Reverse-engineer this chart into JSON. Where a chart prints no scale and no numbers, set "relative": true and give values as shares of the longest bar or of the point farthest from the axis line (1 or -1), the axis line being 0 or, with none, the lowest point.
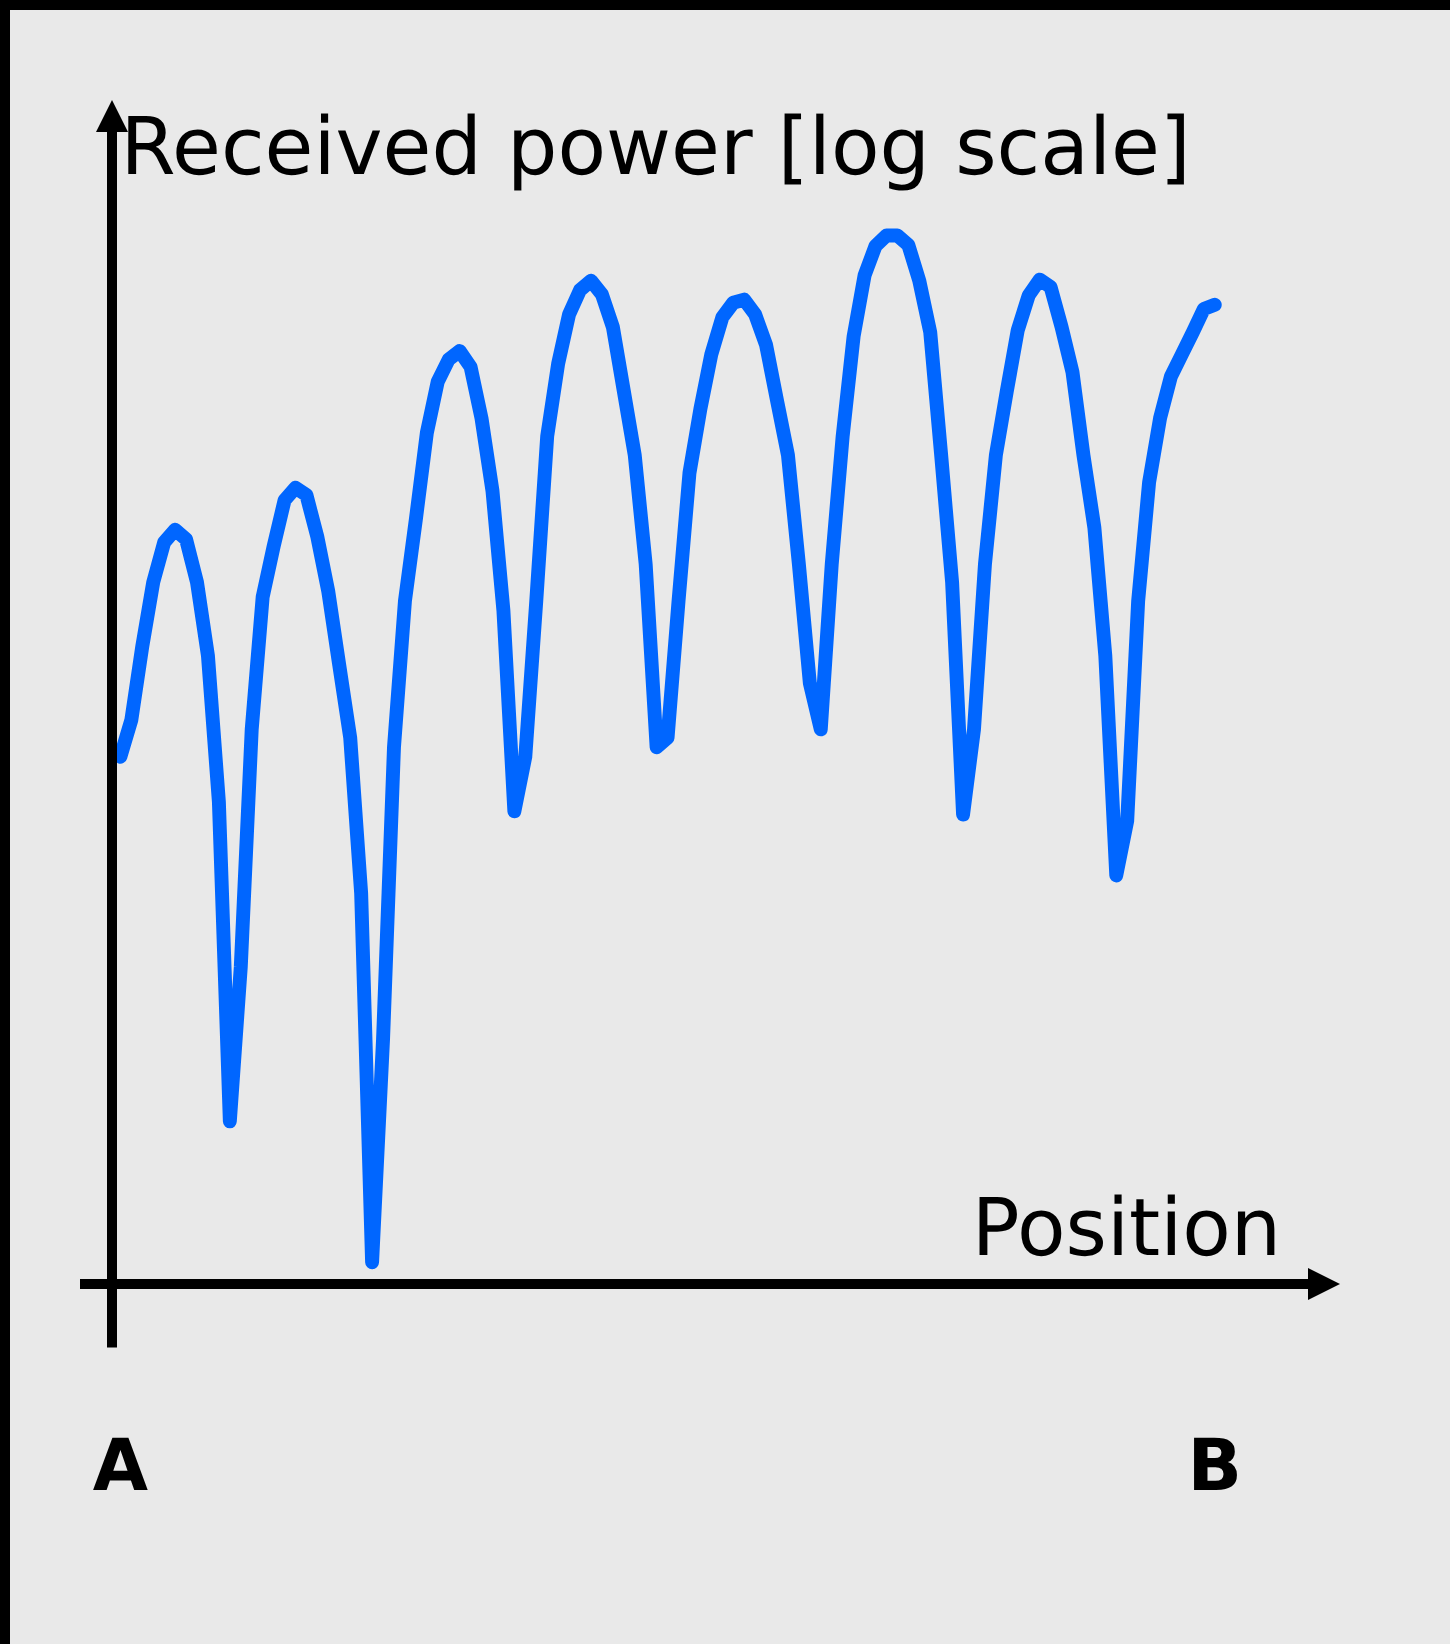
{
  "chart_data": {
    "type": "line",
    "title": "Received power [log scale]",
    "xlabel": "Position",
    "relative": true,
    "grid": false,
    "legend": false,
    "marker": "none",
    "line_style": "solid",
    "categories": [
      "A",
      null,
      null,
      null,
      null,
      null,
      null,
      null,
      null,
      null,
      null,
      null,
      null,
      null,
      null,
      null,
      null,
      null,
      null,
      null,
      null,
      null,
      null,
      null,
      null,
      null,
      null,
      null,
      null,
      null,
      null,
      null,
      null,
      null,
      null,
      null,
      null,
      null,
      null,
      null,
      null,
      null,
      null,
      null,
      null,
      null,
      null,
      null,
      null,
      null,
      null,
      null,
      null,
      null,
      null,
      null,
      null,
      null,
      null,
      null,
      null,
      null,
      null,
      null,
      null,
      null,
      null,
      null,
      null,
      null,
      null,
      null,
      null,
      null,
      null,
      null,
      null,
      null,
      null,
      null,
      null,
      null,
      null,
      null,
      null,
      null,
      null,
      null,
      null,
      null,
      null,
      null,
      null,
      null,
      null,
      null,
      null,
      null,
      null,
      null,
      "B"
    ],
    "series": [
      {
        "color": "#0066ff",
        "values": [
          0.504,
          0.539,
          0.609,
          0.67,
          0.708,
          0.72,
          0.711,
          0.67,
          0.6,
          0.461,
          0.157,
          0.304,
          0.53,
          0.656,
          0.704,
          0.748,
          0.76,
          0.753,
          0.713,
          0.661,
          0.591,
          0.522,
          0.374,
          0.023,
          0.235,
          0.513,
          0.652,
          0.73,
          0.812,
          0.861,
          0.882,
          0.89,
          0.875,
          0.826,
          0.757,
          0.643,
          0.452,
          0.504,
          0.652,
          0.809,
          0.878,
          0.925,
          0.948,
          0.957,
          0.944,
          0.913,
          0.852,
          0.791,
          0.687,
          0.513,
          0.522,
          0.652,
          0.774,
          0.835,
          0.887,
          0.922,
          0.936,
          0.939,
          0.925,
          0.896,
          0.843,
          0.791,
          0.687,
          0.574,
          0.53,
          0.687,
          0.809,
          0.904,
          0.962,
          0.99,
          1,
          1,
          0.991,
          0.957,
          0.908,
          0.791,
          0.67,
          0.449,
          0.53,
          0.687,
          0.791,
          0.852,
          0.91,
          0.943,
          0.958,
          0.951,
          0.913,
          0.87,
          0.791,
          0.722,
          0.6,
          0.391,
          0.443,
          0.652,
          0.765,
          0.826,
          0.866,
          0.887,
          0.908,
          0.93,
          0.934
        ]
      }
    ]
  }
}
